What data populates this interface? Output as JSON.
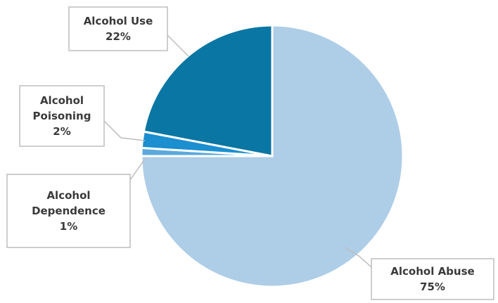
{
  "chart_data": {
    "type": "pie",
    "title": "",
    "legend": "none",
    "slices": [
      {
        "label_lines": [
          "Alcohol Abuse"
        ],
        "value_label": "75%",
        "value": 75,
        "color": "#aecde7"
      },
      {
        "label_lines": [
          "Alcohol",
          "Dependence"
        ],
        "value_label": "1%",
        "value": 1,
        "color": "#5aa9dc"
      },
      {
        "label_lines": [
          "Alcohol",
          "Poisoning"
        ],
        "value_label": "2%",
        "value": 2,
        "color": "#1b8fcf"
      },
      {
        "label_lines": [
          "Alcohol Use"
        ],
        "value_label": "22%",
        "value": 22,
        "color": "#0a76a3"
      }
    ]
  }
}
